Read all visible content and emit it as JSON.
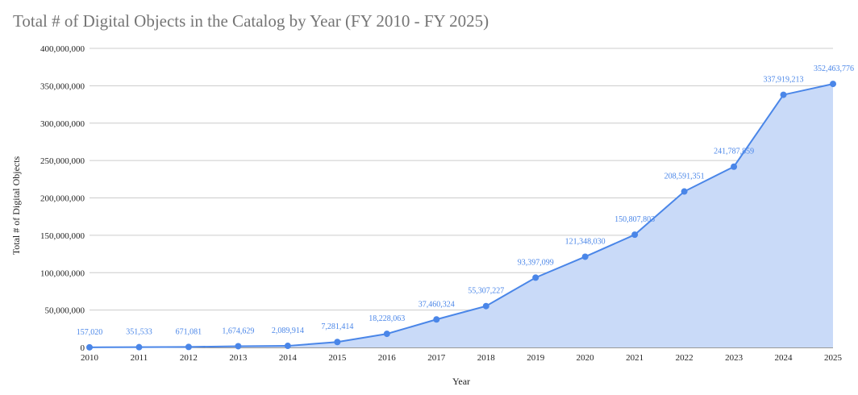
{
  "chart_data": {
    "type": "area",
    "title": "Total # of Digital Objects in the Catalog by Year (FY 2010 - FY 2025)",
    "xlabel": "Year",
    "ylabel": "Total # of Digital Objects",
    "categories": [
      "2010",
      "2011",
      "2012",
      "2013",
      "2014",
      "2015",
      "2016",
      "2017",
      "2018",
      "2019",
      "2020",
      "2021",
      "2022",
      "2023",
      "2024",
      "2025"
    ],
    "series": [
      {
        "values": [
          157020,
          351533,
          671081,
          1674629,
          2089914,
          7281414,
          18228063,
          37460324,
          55307227,
          93397099,
          121348030,
          150807803,
          208591351,
          241787859,
          337919213,
          352463776
        ],
        "labels": [
          "157,020",
          "351,533",
          "671,081",
          "1,674,629",
          "2,089,914",
          "7,281,414",
          "18,228,063",
          "37,460,324",
          "55,307,227",
          "93,397,099",
          "121,348,030",
          "150,807,803",
          "208,591,351",
          "241,787,859",
          "337,919,213",
          "352,463,776"
        ]
      }
    ],
    "ylim": [
      0,
      400000000
    ],
    "yticks": [
      0,
      50000000,
      100000000,
      150000000,
      200000000,
      250000000,
      300000000,
      350000000,
      400000000
    ],
    "ytick_labels": [
      "0",
      "50,000,000",
      "100,000,000",
      "150,000,000",
      "200,000,000",
      "250,000,000",
      "300,000,000",
      "350,000,000",
      "400,000,000"
    ],
    "grid": true,
    "legend": "none",
    "colors": {
      "line": "#4a86e8",
      "fill": "#c9daf8",
      "grid": "#cccccc",
      "title": "#757575",
      "label": "#4a86e8"
    }
  }
}
